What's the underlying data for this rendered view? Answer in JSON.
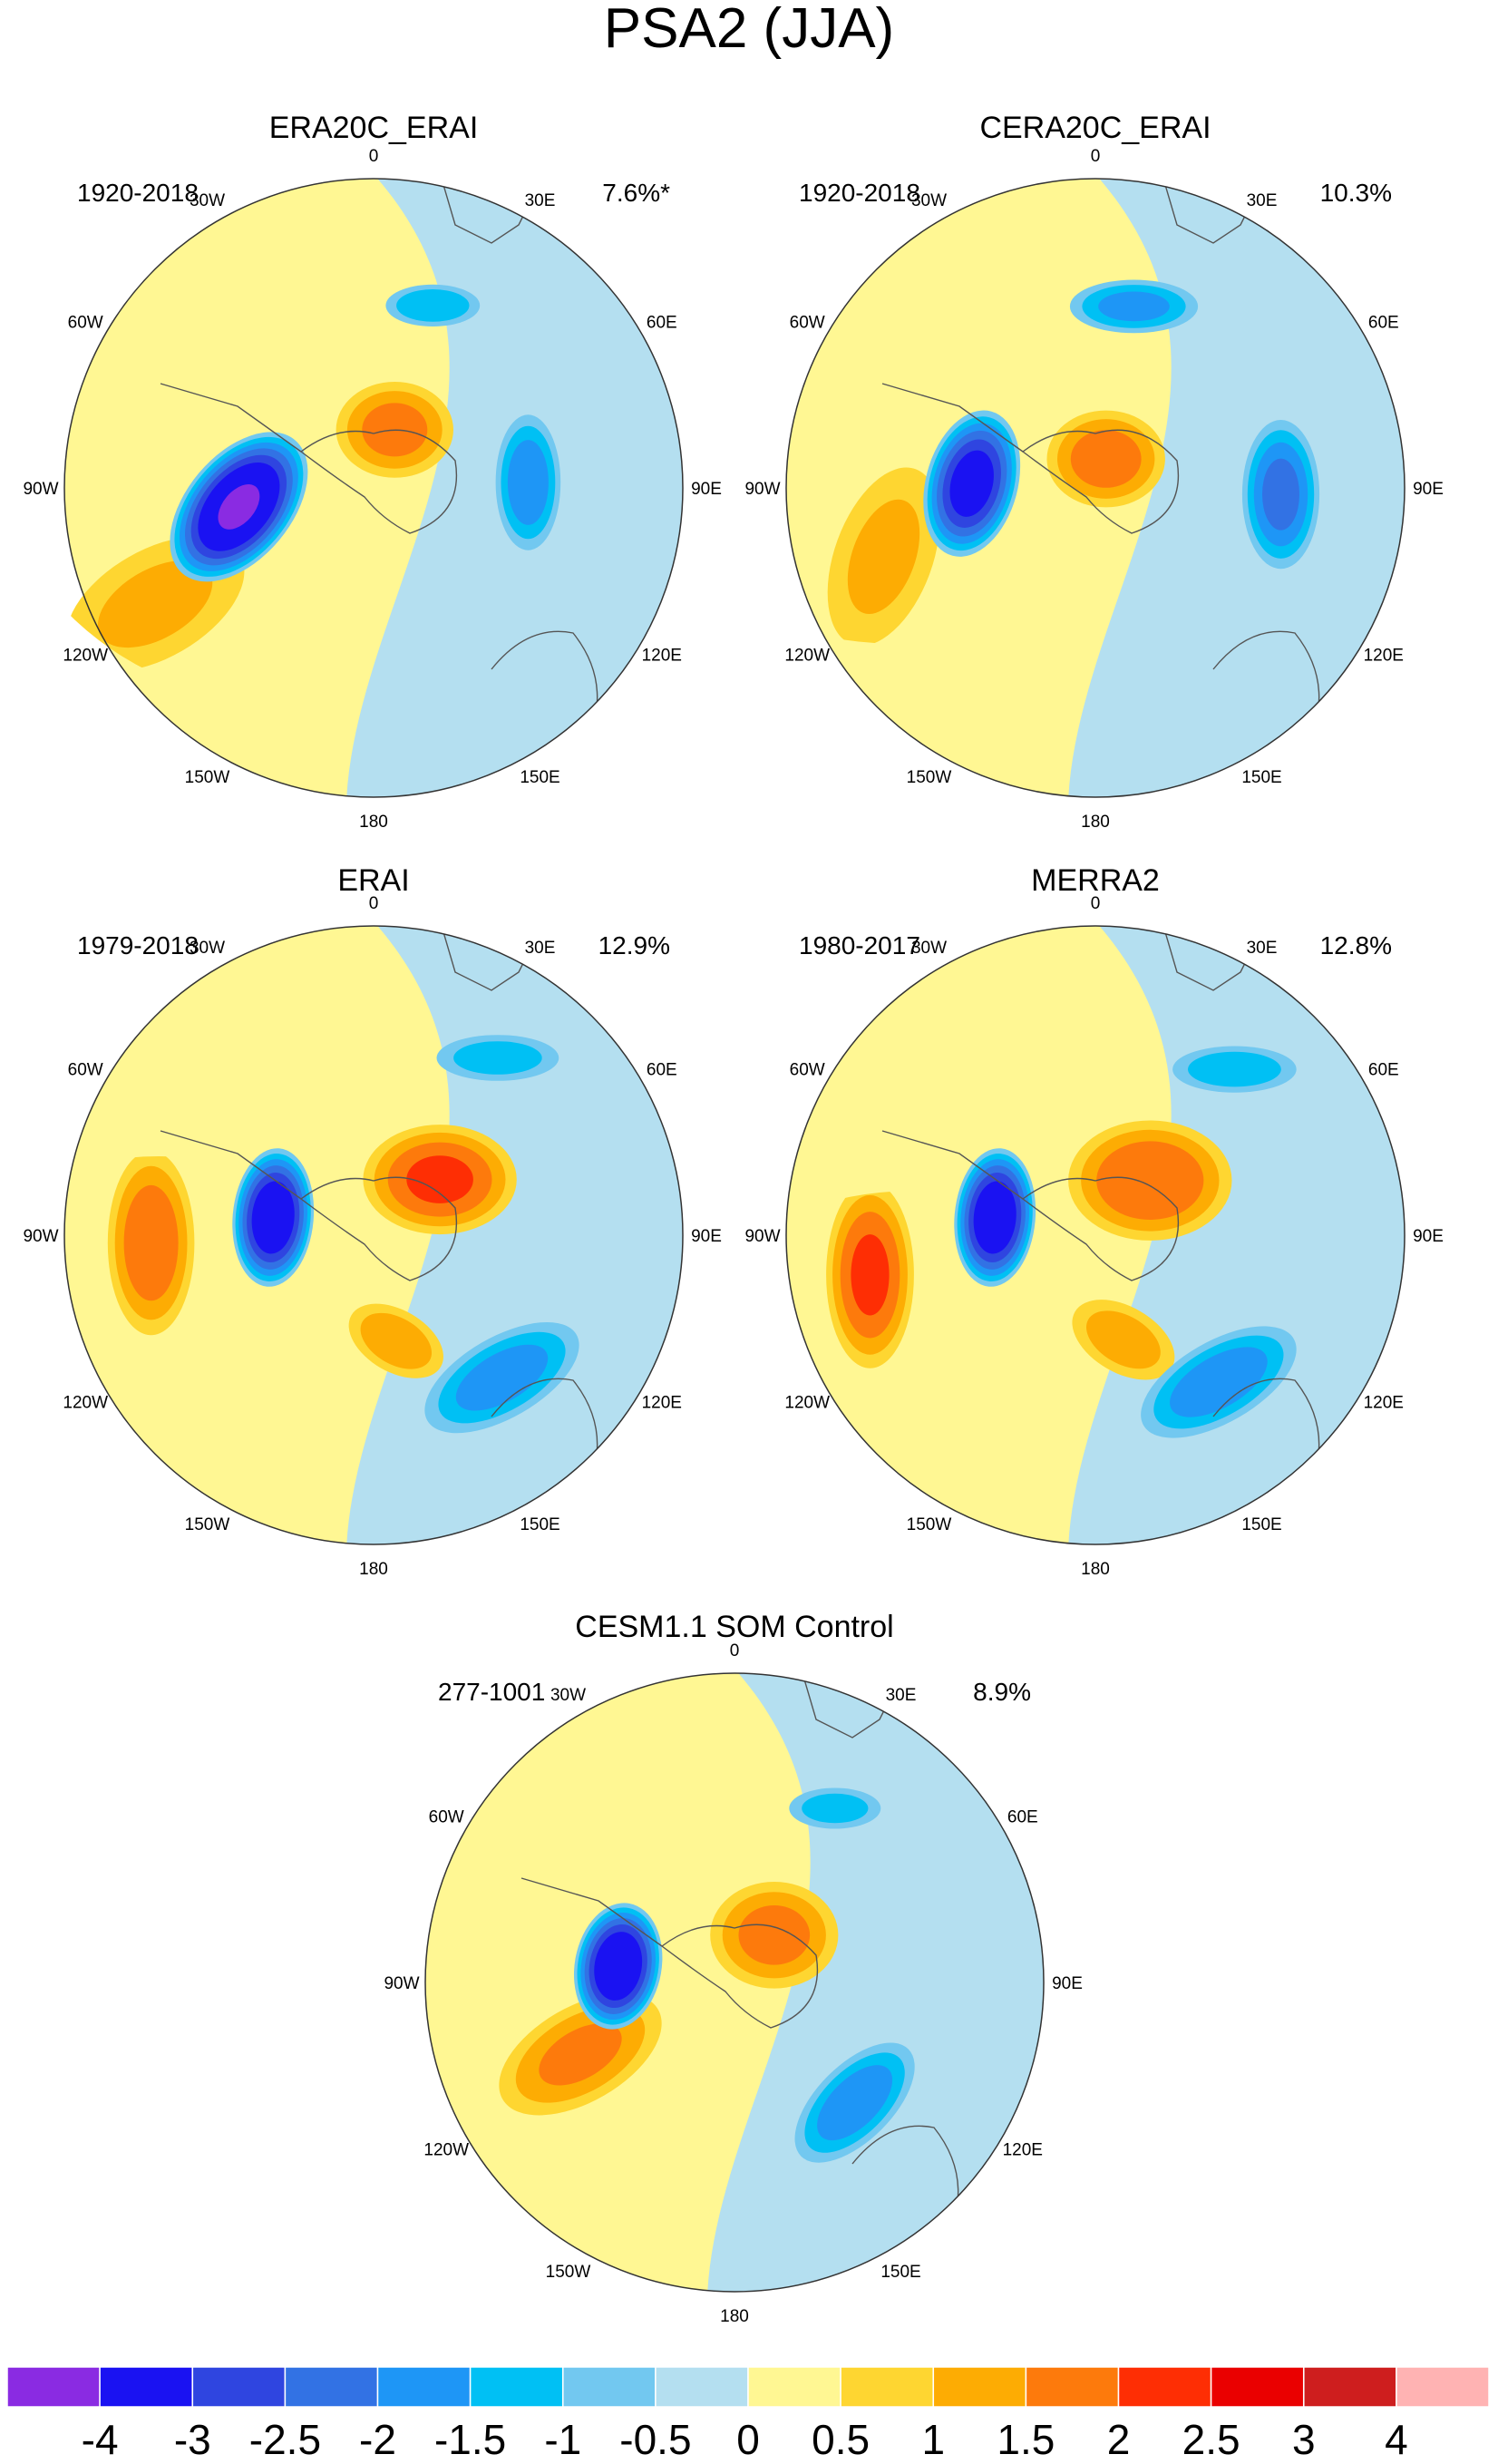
{
  "chart_data": {
    "type": "polar_contour_maps",
    "title": "PSA2 (JJA)",
    "longitude_labels": [
      "0",
      "30E",
      "60E",
      "90E",
      "120E",
      "150E",
      "180",
      "150W",
      "120W",
      "90W",
      "60W",
      "30W"
    ],
    "panels": [
      {
        "id": "era20c",
        "title": "ERA20C_ERAI",
        "period": "1920-2018",
        "variance": "7.6%*",
        "features": [
          {
            "kind": "low",
            "lon": -98,
            "colat": 0.44,
            "peak": -4.0,
            "ang": -50,
            "ra": 0.3,
            "rb": 0.18
          },
          {
            "kind": "high",
            "lon": 20,
            "colat": 0.2,
            "peak": 1.6,
            "ang": 0,
            "ra": 0.22,
            "rb": 0.18
          },
          {
            "kind": "low",
            "lon": 88,
            "colat": 0.5,
            "peak": -1.8,
            "ang": 90,
            "ra": 0.25,
            "rb": 0.12
          },
          {
            "kind": "low",
            "lon": 18,
            "colat": 0.62,
            "peak": -1.4,
            "ang": 0,
            "ra": 0.18,
            "rb": 0.08
          },
          {
            "kind": "high",
            "lon": -118,
            "colat": 0.8,
            "peak": 1.0,
            "ang": -30,
            "ra": 0.4,
            "rb": 0.22
          }
        ]
      },
      {
        "id": "cera20c",
        "title": "CERA20C_ERAI",
        "period": "1920-2018",
        "variance": "10.3%",
        "features": [
          {
            "kind": "low",
            "lon": -88,
            "colat": 0.4,
            "peak": -3.3,
            "ang": -75,
            "ra": 0.26,
            "rb": 0.16
          },
          {
            "kind": "high",
            "lon": 20,
            "colat": 0.1,
            "peak": 1.7,
            "ang": 0,
            "ra": 0.22,
            "rb": 0.18
          },
          {
            "kind": "low",
            "lon": 92,
            "colat": 0.6,
            "peak": -2.1,
            "ang": 90,
            "ra": 0.27,
            "rb": 0.14
          },
          {
            "kind": "low",
            "lon": 12,
            "colat": 0.6,
            "peak": -1.6,
            "ang": 0,
            "ra": 0.24,
            "rb": 0.1
          },
          {
            "kind": "high",
            "lon": -108,
            "colat": 0.72,
            "peak": 1.0,
            "ang": -70,
            "ra": 0.38,
            "rb": 0.2
          }
        ]
      },
      {
        "id": "erai",
        "title": "ERAI",
        "period": "1979-2018",
        "variance": "12.9%",
        "features": [
          {
            "kind": "low",
            "lon": -80,
            "colat": 0.33,
            "peak": -3.6,
            "ang": -85,
            "ra": 0.24,
            "rb": 0.14
          },
          {
            "kind": "high",
            "lon": 50,
            "colat": 0.28,
            "peak": 2.0,
            "ang": 0,
            "ra": 0.28,
            "rb": 0.2
          },
          {
            "kind": "high",
            "lon": -92,
            "colat": 0.72,
            "peak": 1.8,
            "ang": 90,
            "ra": 0.34,
            "rb": 0.16
          },
          {
            "kind": "high",
            "lon": 168,
            "colat": 0.35,
            "peak": 1.3,
            "ang": 30,
            "ra": 0.2,
            "rb": 0.12
          },
          {
            "kind": "low",
            "lon": 138,
            "colat": 0.62,
            "peak": -1.7,
            "ang": -30,
            "ra": 0.32,
            "rb": 0.15
          },
          {
            "kind": "low",
            "lon": 35,
            "colat": 0.7,
            "peak": -1.2,
            "ang": 0,
            "ra": 0.24,
            "rb": 0.09
          }
        ]
      },
      {
        "id": "merra2",
        "title": "MERRA2",
        "period": "1980-2017",
        "variance": "12.8%",
        "features": [
          {
            "kind": "low",
            "lon": -80,
            "colat": 0.33,
            "peak": -3.6,
            "ang": -85,
            "ra": 0.24,
            "rb": 0.14
          },
          {
            "kind": "high",
            "lon": 45,
            "colat": 0.25,
            "peak": 1.9,
            "ang": 0,
            "ra": 0.3,
            "rb": 0.22
          },
          {
            "kind": "high",
            "lon": -100,
            "colat": 0.74,
            "peak": 2.0,
            "ang": 90,
            "ra": 0.34,
            "rb": 0.16
          },
          {
            "kind": "high",
            "lon": 165,
            "colat": 0.35,
            "peak": 1.2,
            "ang": 30,
            "ra": 0.22,
            "rb": 0.13
          },
          {
            "kind": "low",
            "lon": 140,
            "colat": 0.62,
            "peak": -1.8,
            "ang": -30,
            "ra": 0.32,
            "rb": 0.15
          },
          {
            "kind": "low",
            "lon": 40,
            "colat": 0.7,
            "peak": -1.3,
            "ang": 0,
            "ra": 0.24,
            "rb": 0.09
          }
        ]
      },
      {
        "id": "cesm",
        "title": "CESM1.1 SOM Control",
        "period": "277-1001",
        "variance": "8.9%",
        "features": [
          {
            "kind": "low",
            "lon": -82,
            "colat": 0.38,
            "peak": -3.7,
            "ang": -80,
            "ra": 0.22,
            "rb": 0.15
          },
          {
            "kind": "high",
            "lon": 40,
            "colat": 0.2,
            "peak": 1.6,
            "ang": 0,
            "ra": 0.24,
            "rb": 0.2
          },
          {
            "kind": "high",
            "lon": -115,
            "colat": 0.55,
            "peak": 1.5,
            "ang": -30,
            "ra": 0.34,
            "rb": 0.18
          },
          {
            "kind": "low",
            "lon": 135,
            "colat": 0.55,
            "peak": -1.8,
            "ang": -45,
            "ra": 0.28,
            "rb": 0.14
          },
          {
            "kind": "low",
            "lon": 30,
            "colat": 0.65,
            "peak": -1.2,
            "ang": 0,
            "ra": 0.18,
            "rb": 0.08
          }
        ]
      }
    ],
    "colorbar": {
      "labels": [
        "-4",
        "-3",
        "-2.5",
        "-2",
        "-1.5",
        "-1",
        "-0.5",
        "0",
        "0.5",
        "1",
        "1.5",
        "2",
        "2.5",
        "3",
        "4"
      ],
      "levels": [
        -4,
        -3,
        -2.5,
        -2,
        -1.5,
        -1,
        -0.5,
        0,
        0.5,
        1,
        1.5,
        2,
        2.5,
        3,
        4
      ],
      "colors": [
        "#8a2be2",
        "#1a12f2",
        "#2f45e0",
        "#3272e4",
        "#1e96f6",
        "#00c0f4",
        "#72c8f0",
        "#b4dff0",
        "#fff793",
        "#fed631",
        "#fdac03",
        "#fd7a0c",
        "#fe2e04",
        "#ea0000",
        "#ce1e1e",
        "#ffb3b3"
      ]
    }
  }
}
